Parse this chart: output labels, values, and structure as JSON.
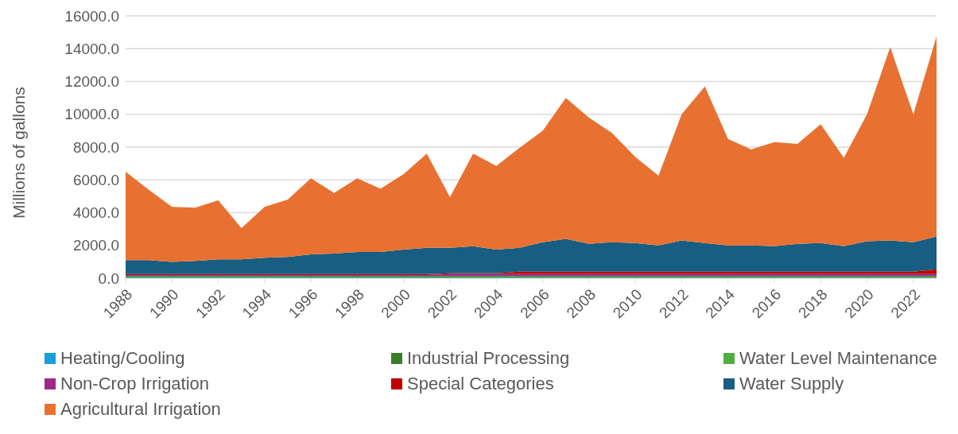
{
  "chart_data": {
    "type": "area",
    "stacked": true,
    "ylabel": "Millions of gallons",
    "x": [
      1988,
      1989,
      1990,
      1991,
      1992,
      1993,
      1994,
      1995,
      1996,
      1997,
      1998,
      1999,
      2000,
      2001,
      2002,
      2003,
      2004,
      2005,
      2006,
      2007,
      2008,
      2009,
      2010,
      2011,
      2012,
      2013,
      2014,
      2015,
      2016,
      2017,
      2018,
      2019,
      2020,
      2021,
      2022,
      2023
    ],
    "xlim": [
      1988,
      2023
    ],
    "xticks": [
      1988,
      1990,
      1992,
      1994,
      1996,
      1998,
      2000,
      2002,
      2004,
      2006,
      2008,
      2010,
      2012,
      2014,
      2016,
      2018,
      2020,
      2022
    ],
    "ylim": [
      0,
      16000
    ],
    "yticks": [
      {
        "value": 0,
        "label": "0.0"
      },
      {
        "value": 2000,
        "label": "2000.0"
      },
      {
        "value": 4000,
        "label": "4000.0"
      },
      {
        "value": 6000,
        "label": "6000.0"
      },
      {
        "value": 8000,
        "label": "8000.0"
      },
      {
        "value": 10000,
        "label": "10000.0"
      },
      {
        "value": 12000,
        "label": "12000.0"
      },
      {
        "value": 14000,
        "label": "14000.0"
      },
      {
        "value": 16000,
        "label": "16000.0"
      }
    ],
    "grid": "y",
    "legend": "bottom",
    "series": [
      {
        "name": "Heating/Cooling",
        "color": "#17a0db",
        "values": [
          50,
          50,
          50,
          50,
          50,
          50,
          50,
          50,
          50,
          50,
          50,
          50,
          50,
          50,
          50,
          50,
          50,
          50,
          50,
          50,
          50,
          50,
          50,
          50,
          50,
          50,
          50,
          50,
          50,
          50,
          50,
          50,
          50,
          50,
          50,
          50
        ]
      },
      {
        "name": "Industrial Processing",
        "color": "#3a7d2a",
        "values": [
          50,
          50,
          50,
          50,
          50,
          50,
          50,
          50,
          50,
          50,
          50,
          50,
          50,
          50,
          50,
          50,
          50,
          50,
          50,
          50,
          50,
          50,
          50,
          50,
          50,
          50,
          50,
          50,
          50,
          50,
          50,
          50,
          50,
          50,
          50,
          50
        ]
      },
      {
        "name": "Water Level Maintenance",
        "color": "#4fb040",
        "values": [
          50,
          50,
          50,
          50,
          50,
          50,
          50,
          50,
          50,
          50,
          50,
          50,
          50,
          50,
          50,
          50,
          50,
          50,
          50,
          50,
          50,
          50,
          50,
          50,
          50,
          50,
          50,
          50,
          50,
          50,
          50,
          50,
          50,
          50,
          50,
          50
        ]
      },
      {
        "name": "Non-Crop Irrigation",
        "color": "#a0288c",
        "values": [
          50,
          50,
          50,
          50,
          50,
          50,
          50,
          50,
          50,
          50,
          50,
          50,
          50,
          50,
          100,
          100,
          100,
          100,
          100,
          100,
          100,
          100,
          100,
          100,
          100,
          100,
          100,
          100,
          100,
          100,
          100,
          100,
          100,
          100,
          100,
          100
        ]
      },
      {
        "name": "Special Categories",
        "color": "#c00000",
        "values": [
          50,
          50,
          50,
          50,
          50,
          50,
          50,
          50,
          50,
          50,
          50,
          50,
          50,
          50,
          50,
          50,
          50,
          150,
          150,
          150,
          150,
          150,
          150,
          150,
          150,
          150,
          150,
          150,
          150,
          150,
          150,
          150,
          150,
          150,
          150,
          300
        ]
      },
      {
        "name": "Water Supply",
        "color": "#175e82",
        "values": [
          850,
          850,
          750,
          800,
          900,
          900,
          1000,
          1050,
          1200,
          1250,
          1350,
          1350,
          1500,
          1600,
          1550,
          1650,
          1450,
          1450,
          1800,
          2000,
          1700,
          1800,
          1750,
          1600,
          1900,
          1750,
          1600,
          1600,
          1550,
          1700,
          1750,
          1550,
          1850,
          1900,
          1800,
          2000
        ]
      },
      {
        "name": "Agricultural Irrigation",
        "color": "#e87132",
        "values": [
          5400,
          4300,
          3350,
          3250,
          3600,
          1900,
          3100,
          3500,
          4650,
          3700,
          4500,
          3850,
          4600,
          5750,
          3100,
          5650,
          5100,
          6100,
          6800,
          8600,
          7700,
          6650,
          5250,
          4250,
          7700,
          9550,
          6500,
          5850,
          6350,
          6100,
          7250,
          5400,
          7750,
          11800,
          7800,
          12200
        ]
      }
    ]
  }
}
